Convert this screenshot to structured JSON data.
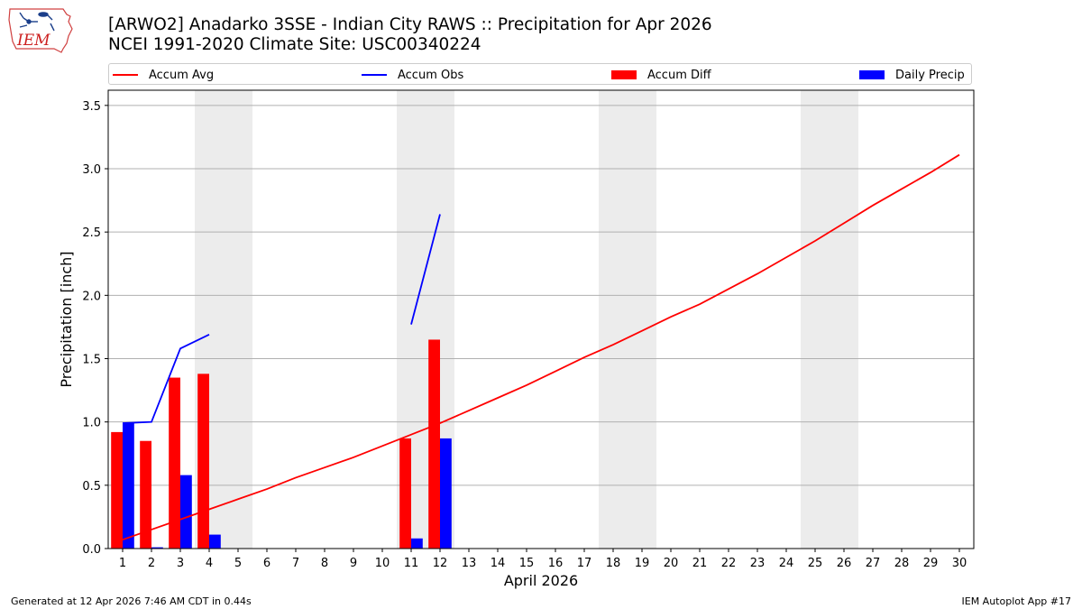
{
  "title_line1": "[ARWO2] Anadarko 3SSE - Indian City RAWS :: Precipitation for Apr 2026",
  "title_line2": "NCEI 1991-2020 Climate Site: USC00340224",
  "logo_text": "IEM",
  "footer_left": "Generated at 12 Apr 2026 7:46 AM CDT in 0.44s",
  "footer_right": "IEM Autoplot App #17",
  "legend": [
    {
      "label": "Accum Avg",
      "kind": "line",
      "color": "#ff0000"
    },
    {
      "label": "Accum Obs",
      "kind": "line",
      "color": "#0000ff"
    },
    {
      "label": "Accum Diff",
      "kind": "bar",
      "color": "#ff0000"
    },
    {
      "label": "Daily Precip",
      "kind": "bar",
      "color": "#0000ff"
    }
  ],
  "chart_data": {
    "type": "bar",
    "xlabel": "April 2026",
    "ylabel": "Precipitation [inch]",
    "x": [
      1,
      2,
      3,
      4,
      5,
      6,
      7,
      8,
      9,
      10,
      11,
      12,
      13,
      14,
      15,
      16,
      17,
      18,
      19,
      20,
      21,
      22,
      23,
      24,
      25,
      26,
      27,
      28,
      29,
      30
    ],
    "xlim": [
      0.5,
      30.5
    ],
    "ylim": [
      0,
      3.62
    ],
    "yticks": [
      0.0,
      0.5,
      1.0,
      1.5,
      2.0,
      2.5,
      3.0,
      3.5
    ],
    "ytick_labels": [
      "0.0",
      "0.5",
      "1.0",
      "1.5",
      "2.0",
      "2.5",
      "3.0",
      "3.5"
    ],
    "grid": "horizontal",
    "legend_position": "top",
    "weekend_shading": [
      [
        4,
        5
      ],
      [
        11,
        12
      ],
      [
        18,
        19
      ],
      [
        25,
        26
      ]
    ],
    "series": [
      {
        "name": "Accum Avg",
        "kind": "line",
        "color": "#ff0000",
        "x": [
          1,
          2,
          3,
          4,
          5,
          6,
          7,
          8,
          9,
          10,
          11,
          12,
          13,
          14,
          15,
          16,
          17,
          18,
          19,
          20,
          21,
          22,
          23,
          24,
          25,
          26,
          27,
          28,
          29,
          30
        ],
        "values": [
          0.07,
          0.15,
          0.23,
          0.31,
          0.39,
          0.47,
          0.56,
          0.64,
          0.72,
          0.81,
          0.9,
          0.99,
          1.09,
          1.19,
          1.29,
          1.4,
          1.51,
          1.61,
          1.72,
          1.83,
          1.93,
          2.05,
          2.17,
          2.3,
          2.43,
          2.57,
          2.71,
          2.84,
          2.97,
          3.11
        ]
      },
      {
        "name": "Accum Obs",
        "kind": "line",
        "color": "#0000ff",
        "segments": [
          {
            "x": [
              1,
              2,
              3,
              4
            ],
            "values": [
              0.99,
              1.0,
              1.58,
              1.69
            ]
          },
          {
            "x": [
              11,
              12
            ],
            "values": [
              1.77,
              2.64
            ]
          }
        ]
      },
      {
        "name": "Accum Diff",
        "kind": "bar",
        "color": "#ff0000",
        "x": [
          1,
          2,
          3,
          4,
          11,
          12
        ],
        "values": [
          0.92,
          0.85,
          1.35,
          1.38,
          0.87,
          1.65
        ]
      },
      {
        "name": "Daily Precip",
        "kind": "bar",
        "color": "#0000ff",
        "x": [
          1,
          2,
          3,
          4,
          11,
          12
        ],
        "values": [
          0.99,
          0.01,
          0.58,
          0.11,
          0.08,
          0.87
        ]
      }
    ]
  }
}
